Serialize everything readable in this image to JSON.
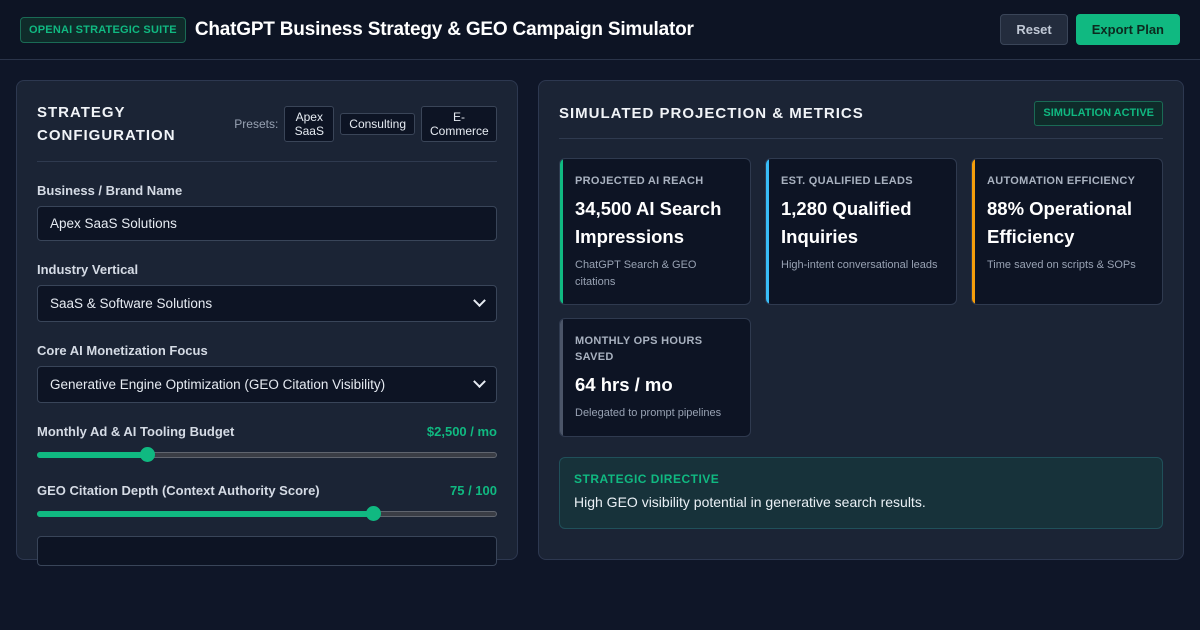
{
  "header": {
    "suite_badge": "OPENAI STRATEGIC SUITE",
    "title": "ChatGPT Business Strategy & GEO Campaign Simulator",
    "reset_label": "Reset",
    "export_label": "Export Plan"
  },
  "config": {
    "title_line1": "STRATEGY",
    "title_line2": "CONFIGURATION",
    "presets_label": "Presets:",
    "presets": [
      {
        "line1": "Apex",
        "line2": "SaaS"
      },
      {
        "line1": "Consulting",
        "line2": ""
      },
      {
        "line1": "E-",
        "line2": "Commerce"
      }
    ],
    "brand_label": "Business / Brand Name",
    "brand_value": "Apex SaaS Solutions",
    "industry_label": "Industry Vertical",
    "industry_value": "SaaS & Software Solutions",
    "focus_label": "Core AI Monetization Focus",
    "focus_value": "Generative Engine Optimization (GEO Citation Visibility)",
    "budget_label": "Monthly Ad & AI Tooling Budget",
    "budget_display": "$2,500 / mo",
    "budget_fraction": 0.24,
    "geo_label": "GEO Citation Depth (Context Authority Score)",
    "geo_display": "75 / 100",
    "geo_fraction": 0.73
  },
  "projection": {
    "title": "SIMULATED PROJECTION & METRICS",
    "status_badge": "SIMULATION ACTIVE",
    "cards": [
      {
        "label": "PROJECTED AI REACH",
        "value": "34,500 AI Search Impressions",
        "sub": "ChatGPT Search & GEO citations",
        "accent": "#10b981"
      },
      {
        "label": "EST. QUALIFIED LEADS",
        "value": "1,280 Qualified Inquiries",
        "sub": "High-intent conversational leads",
        "accent": "#38bdf8"
      },
      {
        "label": "AUTOMATION EFFICIENCY",
        "value": "88% Operational Efficiency",
        "sub": "Time saved on scripts & SOPs",
        "accent": "#f59e0b"
      },
      {
        "label": "MONTHLY OPS HOURS SAVED",
        "value": "64 hrs / mo",
        "sub": "Delegated to prompt pipelines",
        "accent": "#4b5568"
      }
    ],
    "directive_label": "STRATEGIC DIRECTIVE",
    "directive_text": "High GEO visibility potential in generative search results."
  },
  "colors": {
    "accent": "#10b981",
    "background": "#0f1628",
    "panel": "#1b2435"
  }
}
